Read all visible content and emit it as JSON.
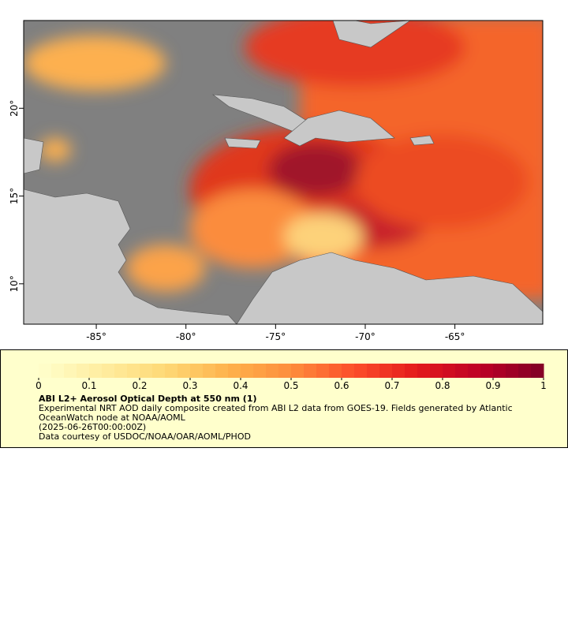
{
  "map": {
    "xlim": [
      -89.05,
      -60.1
    ],
    "ylim": [
      7.7,
      25
    ],
    "xticks": [
      {
        "value": -85,
        "label": "-85°"
      },
      {
        "value": -80,
        "label": "-80°"
      },
      {
        "value": -75,
        "label": "-75°"
      },
      {
        "value": -70,
        "label": "-70°"
      },
      {
        "value": -65,
        "label": "-65°"
      }
    ],
    "yticks": [
      {
        "value": 10,
        "label": "10°"
      },
      {
        "value": 15,
        "label": "15°"
      },
      {
        "value": 20,
        "label": "20°"
      }
    ]
  },
  "colorbar": {
    "range": [
      0,
      1
    ],
    "ticks": [
      0,
      0.1,
      0.2,
      0.3,
      0.4,
      0.5,
      0.6,
      0.7,
      0.8,
      0.9,
      1
    ],
    "colors": [
      "#ffffcc",
      "#ffeda0",
      "#fed976",
      "#feb24c",
      "#fd8d3c",
      "#fc4e2a",
      "#e31a1c",
      "#bd0026",
      "#800026"
    ]
  },
  "legend": {
    "title": "ABI L2+ Aerosol Optical Depth at 550 nm (1)",
    "description": "Experimental NRT AOD daily composite created from ABI L2 data from GOES-19. Fields generated by Atlantic OceanWatch node at NOAA/AOML",
    "time": "(2025-06-26T00:00:00Z)",
    "credit": "Data courtesy of USDOC/NOAA/OAR/AOML/PHOD"
  }
}
